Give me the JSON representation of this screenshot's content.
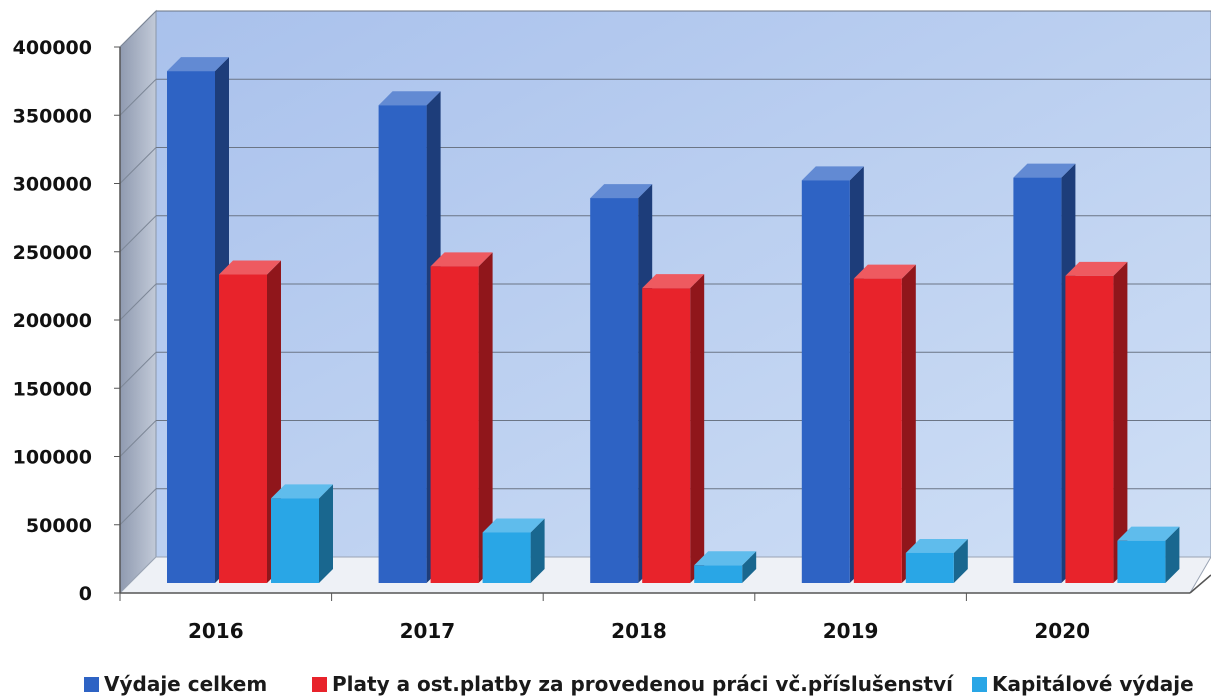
{
  "chart_data": {
    "type": "bar",
    "categories": [
      "2016",
      "2017",
      "2018",
      "2019",
      "2020"
    ],
    "series": [
      {
        "name": "Výdaje celkem",
        "color": "#2e63c4",
        "values": [
          375000,
          350000,
          282000,
          295000,
          297000
        ]
      },
      {
        "name": "Platy a ost.platby za provedenou práci vč.příslušenství",
        "color": "#e8232b",
        "values": [
          226000,
          232000,
          216000,
          223000,
          225000
        ]
      },
      {
        "name": "Kapitálové výdaje",
        "color": "#29a6e6",
        "values": [
          62000,
          37000,
          13000,
          22000,
          31000
        ]
      }
    ],
    "yticks": [
      "0",
      "50000",
      "100000",
      "150000",
      "200000",
      "250000",
      "300000",
      "350000",
      "400000"
    ],
    "ylim": [
      0,
      400000
    ],
    "grid": true,
    "legend_position": "bottom",
    "title": "",
    "xlabel": "",
    "ylabel": ""
  }
}
